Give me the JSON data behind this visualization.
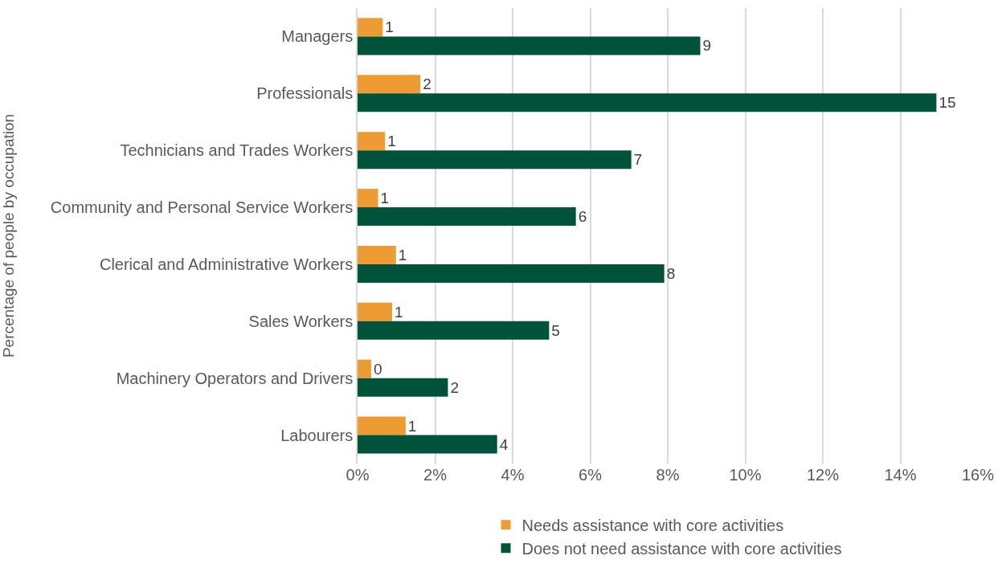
{
  "chart_data": {
    "type": "bar",
    "orientation": "horizontal",
    "ylabel": "Percentage of people by occupation",
    "categories": [
      "Managers",
      "Professionals",
      "Technicians and Trades Workers",
      "Community and Personal Service Workers",
      "Clerical and Administrative Workers",
      "Sales Workers",
      "Machinery Operators and Drivers",
      "Labourers"
    ],
    "series": [
      {
        "name": "Needs assistance with core activities",
        "color": "#ed9b33",
        "values": [
          0.65,
          1.62,
          0.71,
          0.53,
          0.99,
          0.89,
          0.35,
          1.24
        ],
        "value_labels": [
          "1",
          "2",
          "1",
          "1",
          "1",
          "1",
          "0",
          "1"
        ]
      },
      {
        "name": "Does not need assistance with core activities",
        "color": "#00533a",
        "values": [
          8.84,
          14.93,
          7.06,
          5.63,
          7.91,
          4.94,
          2.33,
          3.6
        ],
        "value_labels": [
          "9",
          "15",
          "7",
          "6",
          "8",
          "5",
          "2",
          "4"
        ]
      }
    ],
    "xlim": [
      0,
      16
    ],
    "xticks": [
      {
        "value": 0,
        "label": "0%"
      },
      {
        "value": 2,
        "label": "2%"
      },
      {
        "value": 4,
        "label": "4%"
      },
      {
        "value": 6,
        "label": "6%"
      },
      {
        "value": 8,
        "label": "8%"
      },
      {
        "value": 10,
        "label": "10%"
      },
      {
        "value": 12,
        "label": "12%"
      },
      {
        "value": 14,
        "label": "14%"
      },
      {
        "value": 16,
        "label": "16%"
      }
    ],
    "grid": "x",
    "legend": "bottom"
  }
}
